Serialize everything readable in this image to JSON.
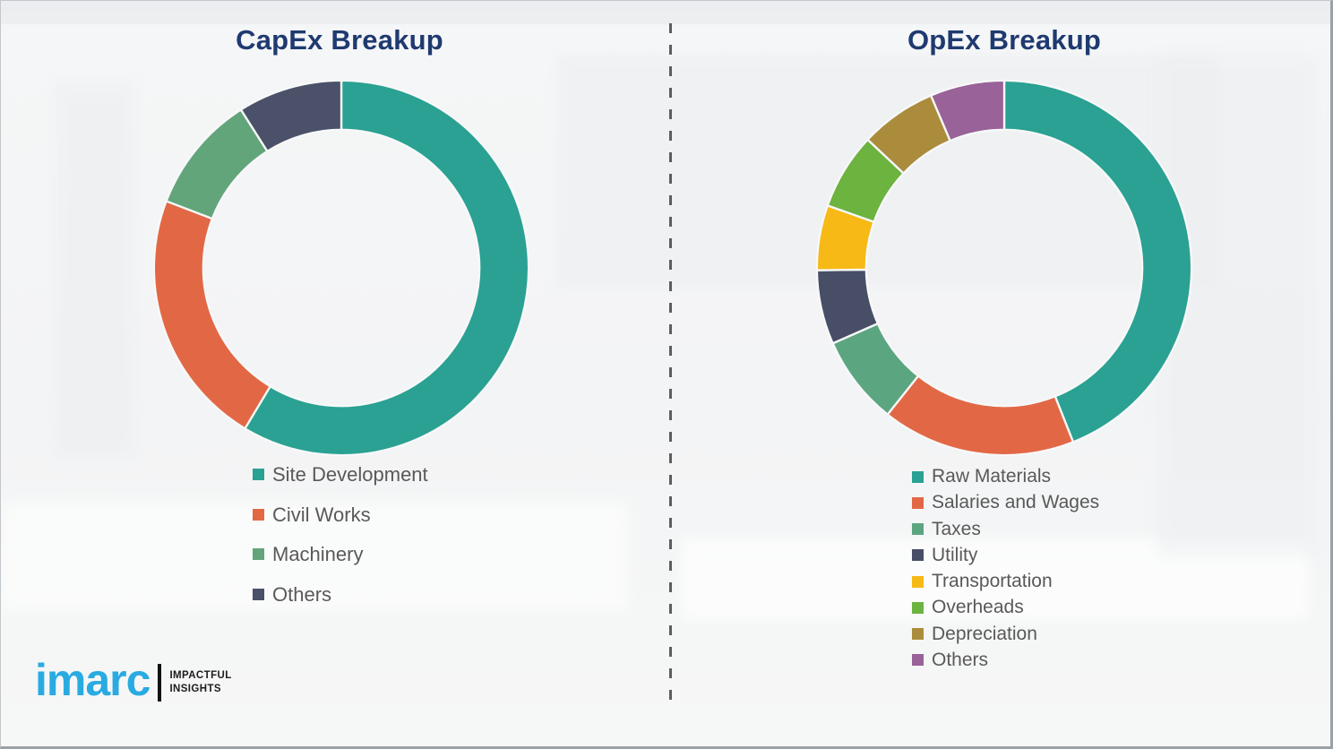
{
  "titles": {
    "left": "CapEx Breakup",
    "right": "OpEx Breakup",
    "title_color": "#1f3a70"
  },
  "chart_data": [
    {
      "type": "pie",
      "subtype": "donut",
      "title": "CapEx Breakup",
      "categories": [
        "Site Development",
        "Civil Works",
        "Machinery",
        "Others"
      ],
      "values": [
        58.6,
        22.2,
        10.2,
        9.0
      ],
      "colors": [
        "#2aa192",
        "#e26845",
        "#63a57b",
        "#4a5168"
      ],
      "unit": "percent_of_ring_estimated",
      "start_angle_deg": 0,
      "direction": "clockwise",
      "legend_position": "below-left",
      "data_labels": false
    },
    {
      "type": "pie",
      "subtype": "donut",
      "title": "OpEx Breakup",
      "categories": [
        "Raw Materials",
        "Salaries and Wages",
        "Taxes",
        "Utility",
        "Transportation",
        "Overheads",
        "Depreciation",
        "Others"
      ],
      "values": [
        44.0,
        16.7,
        7.7,
        6.4,
        5.6,
        6.6,
        6.6,
        6.4
      ],
      "colors": [
        "#2aa192",
        "#e26845",
        "#5ca581",
        "#474e66",
        "#f6b915",
        "#6db33f",
        "#aa8c3c",
        "#996298"
      ],
      "unit": "percent_of_ring_estimated",
      "start_angle_deg": 0,
      "direction": "clockwise",
      "legend_position": "below-left",
      "data_labels": false
    }
  ],
  "divider": {
    "style": "vertical-dashed",
    "color": "#5d5d5d"
  },
  "logo": {
    "brand": "imarc",
    "brand_color": "#29abe2",
    "tagline_line1": "IMPACTFUL",
    "tagline_line2": "INSIGHTS"
  },
  "donut_geometry": {
    "outer_radius": 213,
    "inner_radius": 157,
    "gap_stroke": "#f7f8f9"
  }
}
